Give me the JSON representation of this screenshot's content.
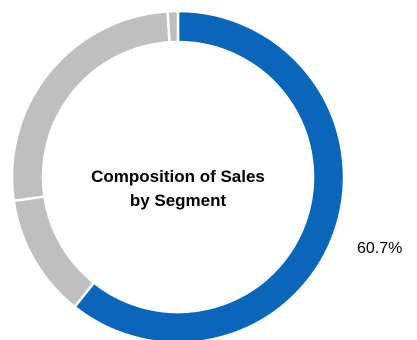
{
  "chart_data": {
    "type": "pie",
    "title": "Composition of Sales by Segment",
    "title_lines": [
      "Composition of Sales",
      "by Segment"
    ],
    "donut": true,
    "start_angle_deg": 0,
    "direction": "clockwise",
    "slices": [
      {
        "value": 60.7,
        "label": "60.7%",
        "color": "#0a66b8",
        "show_label": true
      },
      {
        "value": 12.0,
        "label": "",
        "color": "#bfbfbf",
        "show_label": false
      },
      {
        "value": 26.3,
        "label": "",
        "color": "#bfbfbf",
        "show_label": false
      },
      {
        "value": 1.0,
        "label": "",
        "color": "#bfbfbf",
        "show_label": false
      }
    ]
  }
}
